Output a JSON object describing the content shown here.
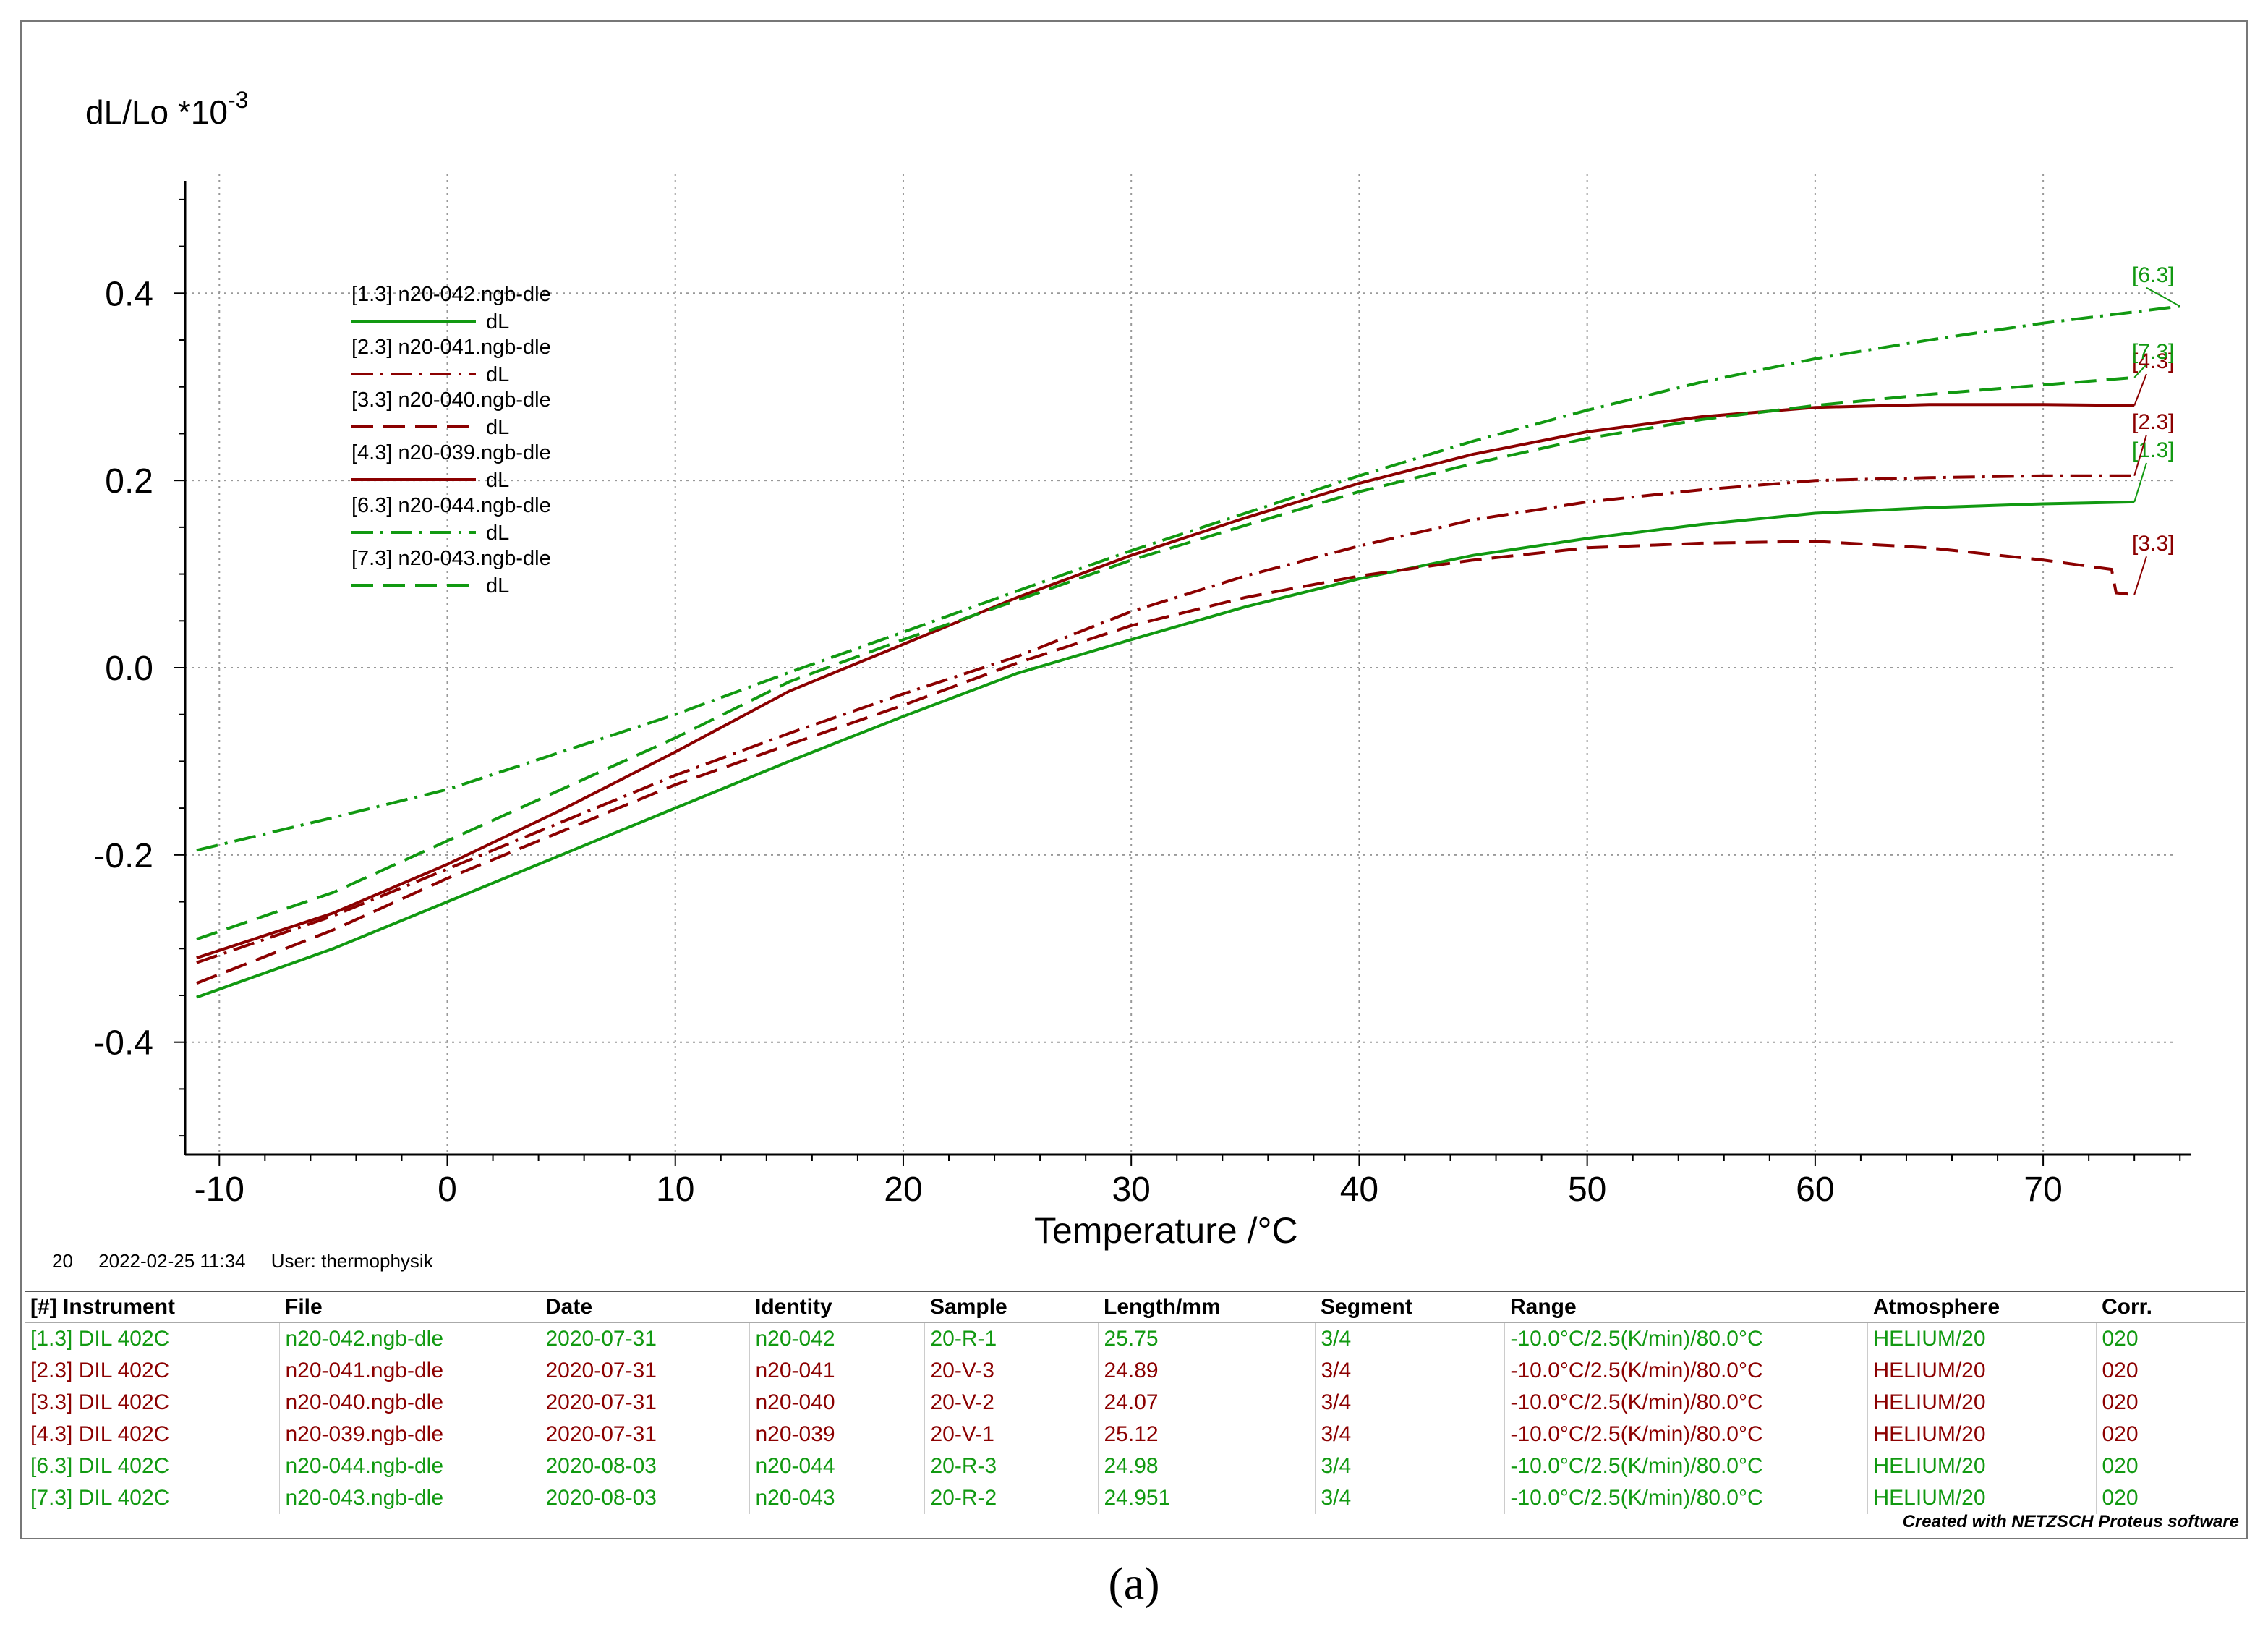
{
  "chart_data": {
    "type": "line",
    "title": "",
    "ylabel": "dL/Lo *10",
    "ylabel_exponent": "-3",
    "xlabel": "Temperature /°C",
    "xlim": [
      -11.5,
      76.5
    ],
    "ylim": [
      -0.52,
      0.52
    ],
    "x_ticks": [
      -10,
      0,
      10,
      20,
      30,
      40,
      50,
      60,
      70
    ],
    "y_ticks": [
      0.4,
      0.2,
      0.0,
      -0.2,
      -0.4
    ],
    "y_tick_labels": [
      "0.4",
      "0.2",
      "0.0",
      "-0.2",
      "-0.4"
    ],
    "grid": true,
    "legend_position": "top-left",
    "series": [
      {
        "id": "1.3",
        "name": "[1.3] n20-042.ngb-dle",
        "sub": "dL",
        "end_tag": "[1.3]",
        "color": "#119911",
        "dash": "solid",
        "x": [
          -11,
          -5,
          0,
          5,
          10,
          15,
          20,
          25,
          30,
          35,
          40,
          45,
          50,
          55,
          60,
          65,
          70,
          74
        ],
        "y": [
          -0.352,
          -0.3,
          -0.25,
          -0.2,
          -0.15,
          -0.1,
          -0.052,
          -0.006,
          0.03,
          0.065,
          0.095,
          0.12,
          0.138,
          0.153,
          0.165,
          0.171,
          0.175,
          0.177
        ]
      },
      {
        "id": "2.3",
        "name": "[2.3] n20-041.ngb-dle",
        "sub": "dL",
        "end_tag": "[2.3]",
        "color": "#8b0000",
        "dash": "dashdot",
        "x": [
          -11,
          -5,
          0,
          5,
          10,
          15,
          20,
          25,
          30,
          35,
          40,
          45,
          50,
          55,
          60,
          65,
          70,
          74
        ],
        "y": [
          -0.315,
          -0.265,
          -0.215,
          -0.165,
          -0.115,
          -0.07,
          -0.028,
          0.012,
          0.06,
          0.098,
          0.13,
          0.158,
          0.177,
          0.19,
          0.2,
          0.203,
          0.205,
          0.205
        ]
      },
      {
        "id": "3.3",
        "name": "[3.3] n20-040.ngb-dle",
        "sub": "dL",
        "end_tag": "[3.3]",
        "color": "#8b0000",
        "dash": "dash",
        "x": [
          -11,
          -5,
          0,
          5,
          10,
          15,
          20,
          25,
          30,
          35,
          40,
          45,
          50,
          55,
          60,
          65,
          70,
          73,
          73.2,
          74
        ],
        "y": [
          -0.337,
          -0.28,
          -0.225,
          -0.175,
          -0.125,
          -0.082,
          -0.04,
          0.005,
          0.045,
          0.075,
          0.098,
          0.115,
          0.128,
          0.133,
          0.135,
          0.128,
          0.115,
          0.105,
          0.08,
          0.078
        ]
      },
      {
        "id": "4.3",
        "name": "[4.3] n20-039.ngb-dle",
        "sub": "dL",
        "end_tag": "[4.3]",
        "color": "#8b0000",
        "dash": "solid",
        "x": [
          -11,
          -5,
          0,
          5,
          10,
          15,
          20,
          25,
          30,
          35,
          40,
          45,
          50,
          55,
          60,
          65,
          70,
          74
        ],
        "y": [
          -0.31,
          -0.262,
          -0.21,
          -0.152,
          -0.09,
          -0.025,
          0.025,
          0.075,
          0.12,
          0.16,
          0.197,
          0.228,
          0.252,
          0.268,
          0.278,
          0.281,
          0.281,
          0.28
        ]
      },
      {
        "id": "6.3",
        "name": "[6.3] n20-044.ngb-dle",
        "sub": "dL",
        "end_tag": "[6.3]",
        "color": "#119911",
        "dash": "dashdot",
        "x": [
          -11,
          -5,
          0,
          5,
          10,
          15,
          20,
          25,
          30,
          35,
          40,
          45,
          50,
          55,
          60,
          65,
          70,
          76
        ],
        "y": [
          -0.195,
          -0.16,
          -0.13,
          -0.09,
          -0.05,
          -0.005,
          0.038,
          0.082,
          0.125,
          0.165,
          0.205,
          0.242,
          0.275,
          0.305,
          0.33,
          0.35,
          0.368,
          0.386
        ]
      },
      {
        "id": "7.3",
        "name": "[7.3] n20-043.ngb-dle",
        "sub": "dL",
        "end_tag": "[7.3]",
        "color": "#119911",
        "dash": "dash",
        "x": [
          -11,
          -5,
          0,
          5,
          10,
          15,
          20,
          25,
          30,
          35,
          40,
          45,
          50,
          55,
          60,
          65,
          70,
          74
        ],
        "y": [
          -0.29,
          -0.24,
          -0.185,
          -0.13,
          -0.075,
          -0.015,
          0.03,
          0.072,
          0.115,
          0.152,
          0.188,
          0.218,
          0.245,
          0.265,
          0.28,
          0.292,
          0.302,
          0.31
        ]
      }
    ]
  },
  "footer": {
    "number": "20",
    "datetime": "2022-02-25 11:34",
    "user": "User: thermophysik"
  },
  "table": {
    "headers": [
      "[#] Instrument",
      "File",
      "Date",
      "Identity",
      "Sample",
      "Length/mm",
      "Segment",
      "Range",
      "Atmosphere",
      "Corr."
    ],
    "rows": [
      {
        "color": "#119911",
        "cells": [
          "[1.3] DIL 402C",
          "n20-042.ngb-dle",
          "2020-07-31",
          "n20-042",
          "20-R-1",
          "25.75",
          "3/4",
          "-10.0°C/2.5(K/min)/80.0°C",
          "HELIUM/20",
          "020"
        ]
      },
      {
        "color": "#8b0000",
        "cells": [
          "[2.3] DIL 402C",
          "n20-041.ngb-dle",
          "2020-07-31",
          "n20-041",
          "20-V-3",
          "24.89",
          "3/4",
          "-10.0°C/2.5(K/min)/80.0°C",
          "HELIUM/20",
          "020"
        ]
      },
      {
        "color": "#8b0000",
        "cells": [
          "[3.3] DIL 402C",
          "n20-040.ngb-dle",
          "2020-07-31",
          "n20-040",
          "20-V-2",
          "24.07",
          "3/4",
          "-10.0°C/2.5(K/min)/80.0°C",
          "HELIUM/20",
          "020"
        ]
      },
      {
        "color": "#8b0000",
        "cells": [
          "[4.3] DIL 402C",
          "n20-039.ngb-dle",
          "2020-07-31",
          "n20-039",
          "20-V-1",
          "25.12",
          "3/4",
          "-10.0°C/2.5(K/min)/80.0°C",
          "HELIUM/20",
          "020"
        ]
      },
      {
        "color": "#119911",
        "cells": [
          "[6.3] DIL 402C",
          "n20-044.ngb-dle",
          "2020-08-03",
          "n20-044",
          "20-R-3",
          "24.98",
          "3/4",
          "-10.0°C/2.5(K/min)/80.0°C",
          "HELIUM/20",
          "020"
        ]
      },
      {
        "color": "#119911",
        "cells": [
          "[7.3] DIL 402C",
          "n20-043.ngb-dle",
          "2020-08-03",
          "n20-043",
          "20-R-2",
          "24.951",
          "3/4",
          "-10.0°C/2.5(K/min)/80.0°C",
          "HELIUM/20",
          "020"
        ]
      }
    ]
  },
  "credit": "Created with NETZSCH Proteus software",
  "caption": "(a)"
}
